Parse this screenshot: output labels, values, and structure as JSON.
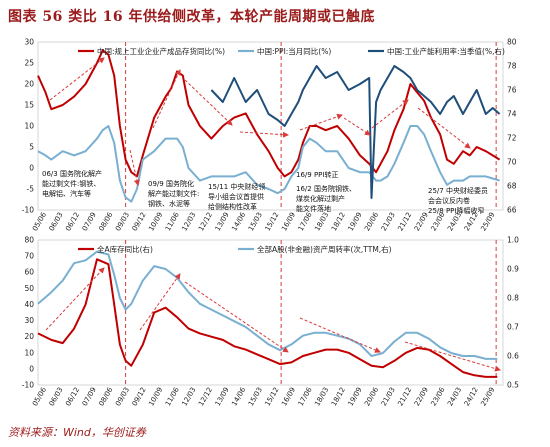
{
  "header": {
    "title": "图表 56   类比 16 年供给侧改革，本轮产能周期或已触底",
    "source": "资料来源：Wind，华创证券"
  },
  "chart_data": [
    {
      "type": "line",
      "legend": [
        "中国:规上工业企业产成品存货同比(%)",
        "中国:PPI:当月同比(%)",
        "中国:工业产能利用率:当季值(%,右)"
      ],
      "x_ticks": [
        "05/06",
        "06/03",
        "06/12",
        "07/09",
        "08/06",
        "09/03",
        "09/12",
        "10/09",
        "11/06",
        "12/03",
        "12/12",
        "13/09",
        "14/06",
        "15/03",
        "15/12",
        "16/09",
        "17/06",
        "18/03",
        "18/12",
        "19/09",
        "20/06",
        "21/03",
        "21/12",
        "22/09",
        "23/06",
        "24/03",
        "24/12",
        "25/09"
      ],
      "ylim_left": [
        -10,
        30
      ],
      "yticks_left": [
        -10,
        -5,
        0,
        5,
        10,
        15,
        20,
        25,
        30
      ],
      "ylim_right": [
        66,
        80
      ],
      "yticks_right": [
        66,
        68,
        70,
        72,
        74,
        76,
        78,
        80
      ],
      "x": [
        2005.42,
        2005.75,
        2006.0,
        2006.5,
        2007.0,
        2007.5,
        2008.0,
        2008.25,
        2008.5,
        2008.75,
        2009.0,
        2009.25,
        2009.5,
        2009.75,
        2010.0,
        2010.5,
        2011.0,
        2011.25,
        2011.5,
        2011.75,
        2012.0,
        2012.5,
        2013.0,
        2013.5,
        2014.0,
        2014.5,
        2015.0,
        2015.5,
        2015.9,
        2016.2,
        2016.5,
        2016.8,
        2017.0,
        2017.3,
        2017.6,
        2018.0,
        2018.5,
        2019.0,
        2019.5,
        2019.9,
        2020.2,
        2020.4,
        2020.7,
        2021.0,
        2021.4,
        2021.7,
        2022.0,
        2022.3,
        2022.6,
        2023.0,
        2023.3,
        2023.6,
        2024.0,
        2024.3,
        2024.6,
        2025.0,
        2025.3,
        2025.6
      ],
      "series": [
        {
          "name": "中国:规上工业企业产成品存货同比(%)",
          "color": "#c00000",
          "axis": "left",
          "values": [
            22,
            18,
            14,
            15,
            17,
            20,
            25,
            28,
            27,
            22,
            10,
            2,
            -1,
            -2,
            3,
            12,
            17,
            19,
            23,
            22,
            15,
            10,
            7,
            10,
            12,
            13,
            8,
            4,
            0,
            -2,
            -1,
            2,
            6,
            10,
            10,
            9,
            10,
            7,
            3,
            1,
            -1,
            1,
            4,
            9,
            14,
            20,
            18,
            16,
            12,
            8,
            2,
            1,
            4,
            3,
            5,
            4,
            3,
            2
          ]
        },
        {
          "name": "中国:PPI:当月同比(%)",
          "color": "#79afd1",
          "axis": "left",
          "values": [
            4,
            3,
            2,
            4,
            3,
            4,
            7,
            9,
            10,
            6,
            -3,
            -7,
            -8,
            -5,
            2,
            4,
            7,
            7,
            7,
            5,
            0,
            -3,
            -2,
            -2,
            -2,
            -1,
            -4,
            -5,
            -6,
            -5,
            -2,
            0,
            5,
            7,
            6,
            4,
            4,
            0,
            -1,
            -1,
            -3,
            -3,
            -2,
            1,
            6,
            10,
            10,
            8,
            4,
            -1,
            -4,
            -3,
            -3,
            -2,
            -2,
            -2,
            -2.5,
            -3
          ]
        },
        {
          "name": "中国:工业产能利用率:当季值(%,右)",
          "color": "#1f4e79",
          "axis": "right",
          "x": [
            2013.0,
            2013.5,
            2014.0,
            2014.5,
            2015.0,
            2015.5,
            2015.9,
            2016.2,
            2016.5,
            2016.8,
            2017.0,
            2017.3,
            2017.6,
            2018.0,
            2018.5,
            2019.0,
            2019.5,
            2019.9,
            2020.0,
            2020.2,
            2020.4,
            2020.7,
            2021.0,
            2021.4,
            2021.7,
            2022.0,
            2022.3,
            2022.6,
            2023.0,
            2023.3,
            2023.6,
            2024.0,
            2024.3,
            2024.6,
            2025.0,
            2025.3,
            2025.6
          ],
          "values": [
            76,
            75,
            77,
            75,
            76,
            74,
            73.5,
            73,
            74,
            75,
            76,
            77,
            78,
            77,
            77.5,
            76,
            76.5,
            77,
            67,
            75,
            76,
            77,
            78,
            77.5,
            77,
            76,
            75.5,
            75,
            74,
            75,
            75.5,
            74,
            75,
            76,
            74,
            74.5,
            74
          ]
        }
      ]
    },
    {
      "type": "line",
      "legend": [
        "全A库存同比(右)",
        "全部A股(非金融)资产周转率(次,TTM,右)"
      ],
      "x_ticks": [
        "05/06",
        "06/03",
        "06/12",
        "07/09",
        "08/06",
        "09/03",
        "09/12",
        "10/09",
        "11/06",
        "12/03",
        "12/12",
        "13/09",
        "14/06",
        "15/03",
        "15/12",
        "16/09",
        "17/06",
        "18/03",
        "18/12",
        "19/09",
        "20/06",
        "21/03",
        "21/12",
        "22/09",
        "23/06",
        "24/03",
        "24/12",
        "25/09"
      ],
      "ylim_left": [
        -10,
        80
      ],
      "yticks_left": [
        -10,
        0,
        10,
        20,
        30,
        40,
        50,
        60,
        70,
        80
      ],
      "ylim_right": [
        0.5,
        1.0
      ],
      "yticks_right": [
        0.5,
        0.6,
        0.7,
        0.8,
        0.9,
        1.0
      ],
      "x": [
        2005.42,
        2006.0,
        2006.5,
        2007.0,
        2007.5,
        2008.0,
        2008.5,
        2008.75,
        2009.0,
        2009.25,
        2009.5,
        2010.0,
        2010.5,
        2011.0,
        2011.5,
        2012.0,
        2012.5,
        2013.0,
        2013.5,
        2014.0,
        2014.5,
        2015.0,
        2015.5,
        2016.0,
        2016.5,
        2017.0,
        2017.5,
        2018.0,
        2018.5,
        2019.0,
        2019.5,
        2020.0,
        2020.5,
        2021.0,
        2021.5,
        2022.0,
        2022.5,
        2023.0,
        2023.5,
        2024.0,
        2024.5,
        2025.0,
        2025.5
      ],
      "series": [
        {
          "name": "全A库存同比(右)",
          "color": "#c00000",
          "axis": "left",
          "values": [
            22,
            18,
            16,
            25,
            40,
            68,
            65,
            40,
            15,
            5,
            2,
            15,
            35,
            38,
            32,
            25,
            22,
            20,
            18,
            14,
            12,
            9,
            6,
            3,
            4,
            8,
            10,
            12,
            12,
            10,
            6,
            2,
            1,
            5,
            10,
            13,
            12,
            8,
            3,
            -2,
            -4,
            -5,
            -5
          ]
        },
        {
          "name": "全部A股(非金融)资产周转率(次,TTM,右)",
          "color": "#79afd1",
          "axis": "right",
          "values": [
            0.78,
            0.82,
            0.86,
            0.92,
            0.93,
            0.96,
            0.95,
            0.88,
            0.8,
            0.76,
            0.78,
            0.86,
            0.91,
            0.9,
            0.87,
            0.82,
            0.78,
            0.76,
            0.74,
            0.72,
            0.7,
            0.67,
            0.64,
            0.62,
            0.64,
            0.67,
            0.68,
            0.68,
            0.67,
            0.66,
            0.64,
            0.6,
            0.61,
            0.65,
            0.68,
            0.68,
            0.66,
            0.63,
            0.61,
            0.6,
            0.6,
            0.59,
            0.59
          ]
        }
      ]
    }
  ],
  "annotations": {
    "a1": "06/3 国务院化解产能过剩文件:钢铁、电解铝、汽车等",
    "a2": "09/9 国务院化解产能过剩文件:钢铁、水泥等",
    "a3": "15/11 中央财经领导小组会议首提供给侧结构性改革",
    "a4": "16/9 PPI转正",
    "a5": "16/2 国务院钢铁、煤炭化解过剩产能文件落地",
    "a6": "25/7 中央财经委员会会议反内卷",
    "a7": "25/8 PPI降幅收窄"
  },
  "colors": {
    "red": "#c00000",
    "light_blue": "#79afd1",
    "dark_blue": "#1f4e79",
    "title_red": "#9b1b1b"
  }
}
